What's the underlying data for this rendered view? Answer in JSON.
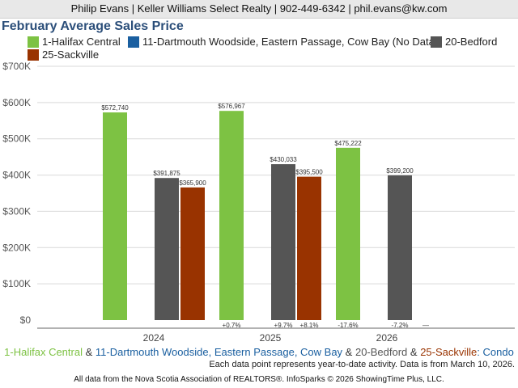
{
  "header": {
    "contact": "Philip Evans | Keller Williams Select Realty | 902-449-6342 | phil.evans@kw.com"
  },
  "legend": [
    {
      "label": "1-Halifax Central",
      "color": "#7dc243"
    },
    {
      "label": "11-Dartmouth Woodside, Eastern Passage, Cow Bay (No Data)",
      "color": "#1a5fa0"
    },
    {
      "label": "20-Bedford",
      "color": "#555555"
    },
    {
      "label": "25-Sackville",
      "color": "#993300"
    }
  ],
  "footer": {
    "series_line": [
      {
        "text": "1-Halifax Central",
        "color": "#7dc243"
      },
      {
        "text": " & ",
        "color": "#333333"
      },
      {
        "text": "11-Dartmouth Woodside, Eastern Passage, Cow Bay",
        "color": "#1a5fa0"
      },
      {
        "text": " & ",
        "color": "#333333"
      },
      {
        "text": "20-Bedford",
        "color": "#555555"
      },
      {
        "text": " & ",
        "color": "#333333"
      },
      {
        "text": "25-Sackville",
        "color": "#993300"
      },
      {
        "text": ": Condo",
        "color": "#1a5fa0"
      }
    ],
    "note": "Each data point represents year-to-date activity. Data is from March 10, 2026.",
    "source": "All data from the Nova Scotia Association of REALTORS®. InfoSparks © 2026 ShowingTime Plus, LLC."
  },
  "chart_data": {
    "type": "bar",
    "title": "February Average Sales Price",
    "categories": [
      "2024",
      "2025",
      "2026"
    ],
    "y_ticks": [
      "$0",
      "$100K",
      "$200K",
      "$300K",
      "$400K",
      "$500K",
      "$600K",
      "$700K"
    ],
    "ylim": [
      0,
      700000
    ],
    "grid": true,
    "legend_position": "top",
    "series": [
      {
        "name": "1-Halifax Central",
        "color": "#7dc243",
        "values": [
          572740,
          576967,
          475222
        ],
        "labels": [
          "$572,740",
          "$576,967",
          "$475,222"
        ],
        "changes": [
          "",
          "+0.7%",
          "-17.6%"
        ]
      },
      {
        "name": "11-Dartmouth Woodside, Eastern Passage, Cow Bay",
        "color": "#1a5fa0",
        "values": [
          null,
          null,
          null
        ],
        "labels": [
          "",
          "",
          ""
        ],
        "changes": [
          "",
          "",
          ""
        ]
      },
      {
        "name": "20-Bedford",
        "color": "#555555",
        "values": [
          391875,
          430033,
          399200
        ],
        "labels": [
          "$391,875",
          "$430,033",
          "$399,200"
        ],
        "changes": [
          "",
          "+9.7%",
          "-7.2%"
        ]
      },
      {
        "name": "25-Sackville",
        "color": "#993300",
        "values": [
          365900,
          395500,
          null
        ],
        "labels": [
          "$365,900",
          "$395,500",
          ""
        ],
        "changes": [
          "",
          "+8.1%",
          "—"
        ]
      }
    ]
  }
}
